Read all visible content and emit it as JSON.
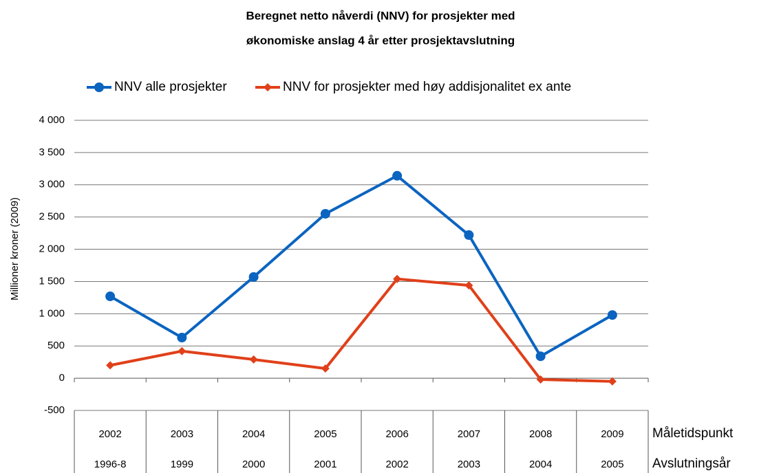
{
  "chart_data": {
    "type": "line",
    "title": [
      "Beregnet netto nåverdi (NNV) for prosjekter med",
      "økonomiske anslag 4 år etter prosjektavslutning"
    ],
    "y_label": "Millioner kroner (2009)",
    "categories_label": "Måletidspunkt",
    "categories": [
      "2002",
      "2003",
      "2004",
      "2005",
      "2006",
      "2007",
      "2008",
      "2009"
    ],
    "categories2_label": "Avslutningsår",
    "categories2": [
      "1996-8",
      "1999",
      "2000",
      "2001",
      "2002",
      "2003",
      "2004",
      "2005"
    ],
    "series": [
      {
        "name": "NNV alle prosjekter",
        "color": "#0b64c0",
        "marker": "circle",
        "values": [
          1270,
          630,
          1570,
          2550,
          3140,
          2220,
          340,
          980
        ]
      },
      {
        "name": "NNV for prosjekter med høy addisjonalitet ex ante",
        "color": "#e0401a",
        "marker": "diamond",
        "values": [
          200,
          420,
          290,
          150,
          1540,
          1440,
          -20,
          -50
        ]
      }
    ],
    "ylim": [
      -500,
      4000
    ],
    "yticks": [
      -500,
      0,
      500,
      {
        "value": 1000,
        "label": "1 000"
      },
      {
        "value": 1500,
        "label": "1 500"
      },
      {
        "value": 2000,
        "label": "2 000"
      },
      {
        "value": 2500,
        "label": "2 500"
      },
      {
        "value": 3000,
        "label": "3 000"
      },
      {
        "value": 3500,
        "label": "3 500"
      },
      {
        "value": 4000,
        "label": "4 000"
      }
    ],
    "grid": true,
    "legend": "top"
  }
}
